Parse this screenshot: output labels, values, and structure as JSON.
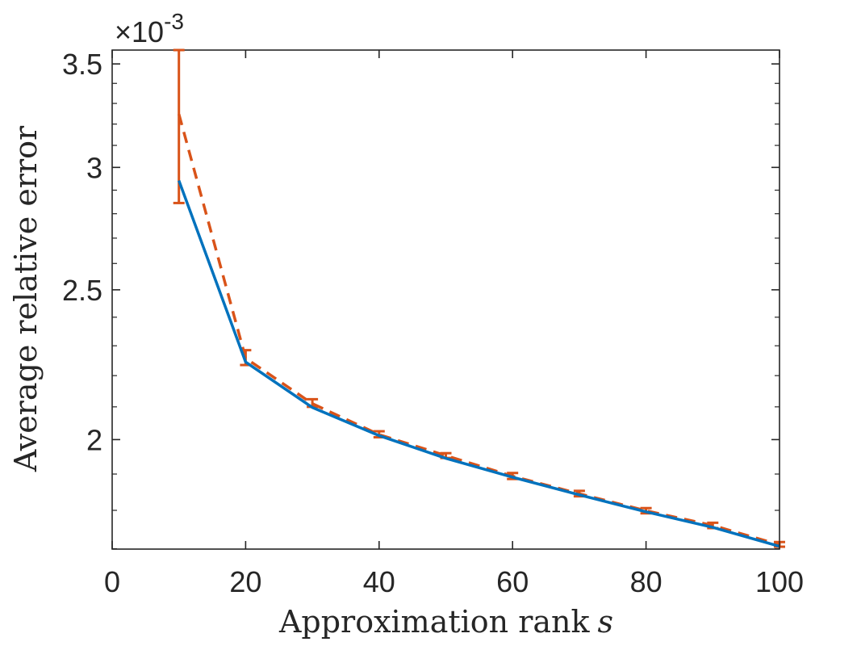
{
  "chart_data": {
    "type": "line",
    "xlabel": "Approximation rank",
    "xlabel_symbol": "s",
    "ylabel": "Average relative error",
    "y_exponent_prefix": "×10",
    "y_exponent_power": "-3",
    "y_scale": "log",
    "xlim": [
      0,
      100
    ],
    "ylim": [
      0.001699,
      0.003573
    ],
    "x_ticks": [
      0,
      20,
      40,
      60,
      80,
      100
    ],
    "x_tick_labels": [
      "0",
      "20",
      "40",
      "60",
      "80",
      "100"
    ],
    "y_ticks": [
      0.002,
      0.0025,
      0.003,
      0.0035
    ],
    "y_tick_labels": [
      "2",
      "2.5",
      "3",
      "3.5"
    ],
    "grid": false,
    "x": [
      10,
      20,
      30,
      40,
      50,
      60,
      70,
      80,
      90,
      100
    ],
    "series": [
      {
        "style": "solid",
        "color": "#0072BD",
        "values": [
          0.002942,
          0.002245,
          0.002098,
          0.002012,
          0.001945,
          0.001891,
          0.001842,
          0.001796,
          0.001755,
          0.001706
        ]
      },
      {
        "style": "dashed",
        "color": "#D95319",
        "values": [
          0.003248,
          0.002258,
          0.00211,
          0.002015,
          0.001953,
          0.001894,
          0.001845,
          0.001799,
          0.00176,
          0.00171
        ],
        "error_low": [
          0.002845,
          0.002235,
          0.0021,
          0.002007,
          0.001946,
          0.001886,
          0.001838,
          0.001792,
          0.001753,
          0.001705
        ],
        "error_high": [
          0.003573,
          0.002285,
          0.002124,
          0.002025,
          0.00196,
          0.001903,
          0.001853,
          0.001806,
          0.001767,
          0.001717
        ]
      }
    ]
  }
}
